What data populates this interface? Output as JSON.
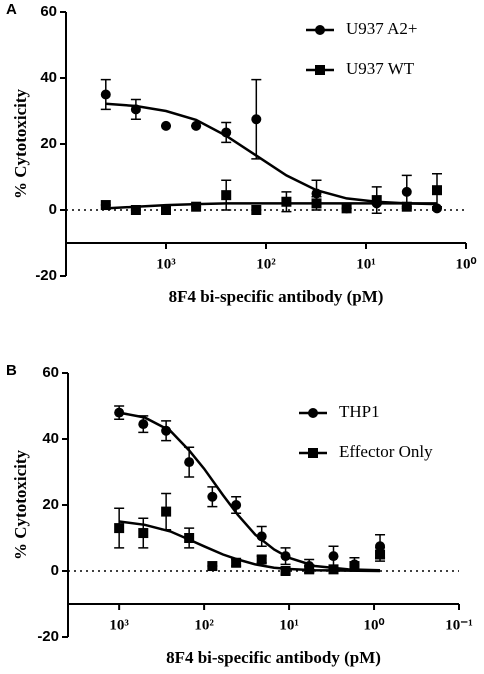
{
  "chart_data": [
    {
      "type": "scatter",
      "panel_label": "A",
      "xlabel": "8F4 bi-specific antibody (pM)",
      "ylabel": "% Cytotoxicity",
      "log_x": true,
      "xlim": [
        10000,
        1
      ],
      "ylim": [
        -20,
        60
      ],
      "x_axis_at": -10,
      "reference_line": 0,
      "xticks": [
        {
          "value": 1000,
          "label": "10³"
        },
        {
          "value": 100,
          "label": "10²"
        },
        {
          "value": 10,
          "label": "10¹"
        },
        {
          "value": 1,
          "label": "10⁰"
        }
      ],
      "yticks": [
        -20,
        0,
        20,
        40,
        60
      ],
      "legend": "upper right",
      "x": [
        4000,
        2000,
        1000,
        500,
        250,
        125,
        62.5,
        31.25,
        15.63,
        7.81,
        3.91,
        1.95
      ],
      "series": [
        {
          "name": "U937 A2+",
          "marker": "circle",
          "color": "#000000",
          "values": [
            35,
            30.5,
            25.5,
            25.5,
            23.5,
            27.5,
            null,
            5,
            0.5,
            2,
            5.5,
            0.5
          ],
          "errors": [
            4.5,
            3,
            0,
            0,
            3,
            12,
            null,
            4,
            0,
            0,
            5,
            0
          ],
          "fit": {
            "x": [
              4000,
              2000,
              1000,
              500,
              250,
              125,
              62.5,
              31.25,
              15.63,
              7.81,
              3.91,
              1.95
            ],
            "values": [
              32.2,
              31.5,
              30,
              27.3,
              22.5,
              16.5,
              10.5,
              6,
              3.5,
              2.5,
              2,
              1.8
            ]
          }
        },
        {
          "name": "U937 WT",
          "marker": "square",
          "color": "#000000",
          "values": [
            1.5,
            0,
            0,
            1,
            4.5,
            0,
            2.5,
            2,
            0.5,
            3,
            1,
            6
          ],
          "errors": [
            0,
            0,
            0,
            0,
            4.5,
            0,
            3,
            2,
            0,
            4,
            0,
            5
          ],
          "fit": {
            "x": [
              4000,
              2000,
              1000,
              500,
              250,
              125,
              62.5,
              1.95
            ],
            "values": [
              0.5,
              1,
              1.5,
              1.8,
              2,
              2,
              2,
              2
            ]
          }
        }
      ]
    },
    {
      "type": "scatter",
      "panel_label": "B",
      "xlabel": "8F4 bi-specific antibody (pM)",
      "ylabel": "% Cytotoxicity",
      "log_x": true,
      "xlim": [
        4000,
        0.1
      ],
      "ylim": [
        -20,
        60
      ],
      "x_axis_at": -10,
      "reference_line": 0,
      "xticks": [
        {
          "value": 1000,
          "label": "10³"
        },
        {
          "value": 100,
          "label": "10²"
        },
        {
          "value": 10,
          "label": "10¹"
        },
        {
          "value": 1,
          "label": "10⁰"
        },
        {
          "value": 0.1,
          "label": "10⁻¹"
        }
      ],
      "yticks": [
        -20,
        0,
        20,
        40,
        60
      ],
      "legend": "upper right",
      "x": [
        1000,
        520,
        280,
        150,
        80,
        42,
        21,
        11,
        5.8,
        3,
        1.7,
        0.85
      ],
      "series": [
        {
          "name": "THP1",
          "marker": "circle",
          "color": "#000000",
          "values": [
            48,
            44.5,
            42.5,
            33,
            22.5,
            20,
            10.5,
            4.5,
            1.5,
            4.5,
            2,
            7.5
          ],
          "errors": [
            2,
            2.5,
            3,
            4.5,
            3,
            2.5,
            3,
            2.5,
            2,
            3,
            2,
            3.5
          ],
          "fit": {
            "x": [
              1000,
              500,
              250,
              150,
              100,
              60,
              40,
              25,
              15,
              10,
              5,
              2,
              0.85
            ],
            "values": [
              48,
              46.5,
              42.5,
              36.5,
              31,
              23,
              17,
              11,
              6.5,
              4,
              1.5,
              0.5,
              0.2
            ]
          }
        },
        {
          "name": "Effector Only",
          "marker": "square",
          "color": "#000000",
          "values": [
            13,
            11.5,
            18,
            10,
            1.5,
            2.5,
            3.5,
            0,
            0.5,
            0.5,
            1.5,
            5
          ],
          "errors": [
            6,
            4.5,
            5.5,
            3,
            0,
            1,
            1,
            1,
            1,
            0,
            0,
            2
          ],
          "fit": {
            "x": [
              1000,
              500,
              250,
              150,
              100,
              60,
              40,
              25,
              15,
              10,
              5,
              0.85
            ],
            "values": [
              15,
              14,
              12,
              9.5,
              7.5,
              5,
              3.5,
              2,
              1,
              0.6,
              0.2,
              0
            ]
          }
        }
      ]
    }
  ]
}
